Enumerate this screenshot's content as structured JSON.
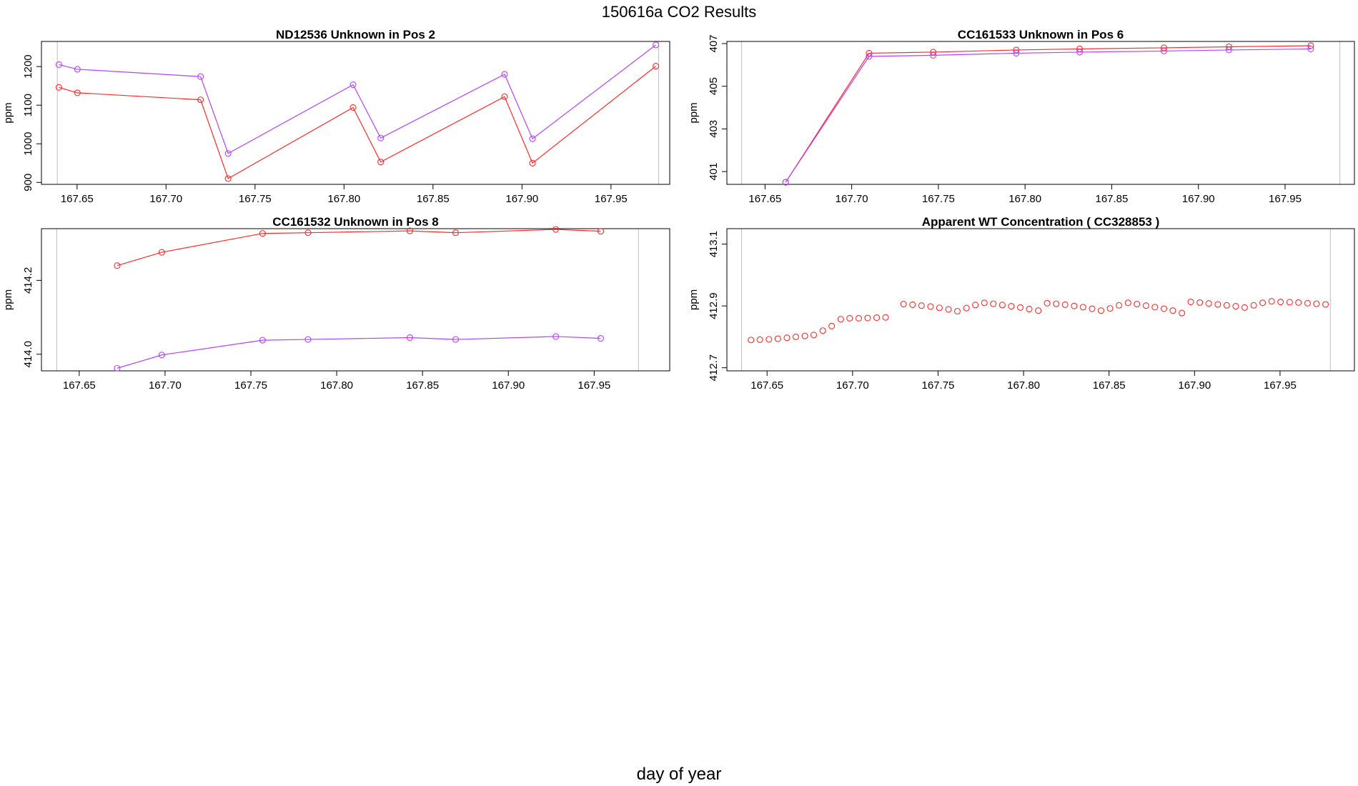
{
  "page": {
    "title": "150616a  CO2 Results",
    "x_axis_title": "day of year"
  },
  "colors": {
    "series_red": "#ff2a2a",
    "series_purple": "#b542ff",
    "axis": "#000000",
    "edge_line": "#bebebe"
  },
  "chart_data": [
    {
      "type": "line",
      "title": "ND12536    Unknown in Pos 2",
      "ylabel": "ppm",
      "xlim": [
        167.63,
        167.983
      ],
      "ylim": [
        895,
        1265
      ],
      "xticks": [
        "167.65",
        "167.70",
        "167.75",
        "167.80",
        "167.85",
        "167.90",
        "167.95"
      ],
      "yticks": [
        "900",
        "1000",
        "1100",
        "1200"
      ],
      "edge_lines": [
        167.6389,
        167.9768
      ],
      "series": [
        {
          "name": "purple",
          "color": "#b542ff",
          "x": [
            167.6398,
            167.6502,
            167.7194,
            167.7349,
            167.8051,
            167.8206,
            167.8902,
            167.9059,
            167.9752
          ],
          "y": [
            1205,
            1193,
            1174,
            975,
            1153,
            1015,
            1180,
            1013,
            1256
          ]
        },
        {
          "name": "red",
          "color": "#ff2a2a",
          "x": [
            167.6398,
            167.6502,
            167.7194,
            167.7349,
            167.8051,
            167.8206,
            167.8902,
            167.9059,
            167.9752
          ],
          "y": [
            1146,
            1132,
            1114,
            910,
            1094,
            953,
            1122,
            950,
            1201
          ]
        }
      ]
    },
    {
      "type": "line",
      "title": "CC161533    Unknown in Pos 6",
      "ylabel": "ppm",
      "xlim": [
        167.628,
        167.99
      ],
      "ylim": [
        400.4,
        407.1
      ],
      "xticks": [
        "167.65",
        "167.70",
        "167.75",
        "167.80",
        "167.85",
        "167.90",
        "167.95"
      ],
      "yticks": [
        "401",
        "403",
        "405",
        "407"
      ],
      "edge_lines": [
        167.6365,
        167.9816
      ],
      "series": [
        {
          "name": "red",
          "color": "#ff2a2a",
          "x": [
            167.6619,
            167.71,
            167.747,
            167.7949,
            167.8315,
            167.8801,
            167.9176,
            167.9648
          ],
          "y": [
            400.5,
            406.55,
            406.6,
            406.7,
            406.75,
            406.8,
            406.85,
            406.9
          ]
        },
        {
          "name": "purple",
          "color": "#b542ff",
          "x": [
            167.6619,
            167.71,
            167.747,
            167.7949,
            167.8315,
            167.8801,
            167.9176,
            167.9648
          ],
          "y": [
            400.5,
            406.4,
            406.45,
            406.55,
            406.6,
            406.65,
            406.7,
            406.75
          ]
        }
      ]
    },
    {
      "type": "line",
      "title": "CC161532    Unknown in Pos 8",
      "ylabel": "ppm",
      "xlim": [
        167.628,
        167.994
      ],
      "ylim": [
        413.955,
        414.34
      ],
      "xticks": [
        "167.65",
        "167.70",
        "167.75",
        "167.80",
        "167.85",
        "167.90",
        "167.95"
      ],
      "yticks": [
        "414.0",
        "414.2"
      ],
      "edge_lines": [
        167.6369,
        167.9758
      ],
      "series": [
        {
          "name": "red",
          "color": "#ff2a2a",
          "x": [
            167.6721,
            167.6981,
            167.7568,
            167.7833,
            167.8426,
            167.8693,
            167.9276,
            167.9538
          ],
          "y": [
            414.24,
            414.276,
            414.327,
            414.329,
            414.334,
            414.329,
            414.338,
            414.333
          ]
        },
        {
          "name": "purple",
          "color": "#b542ff",
          "x": [
            167.6721,
            167.6981,
            167.7568,
            167.7833,
            167.8426,
            167.8693,
            167.9276,
            167.9538
          ],
          "y": [
            413.962,
            413.998,
            414.038,
            414.04,
            414.045,
            414.04,
            414.048,
            414.043
          ]
        }
      ]
    },
    {
      "type": "scatter",
      "title": "Apparent WT Concentration ( CC328853 )",
      "ylabel": "ppm",
      "xlim": [
        167.6265,
        167.9935
      ],
      "ylim": [
        412.69,
        413.15
      ],
      "xticks": [
        "167.65",
        "167.70",
        "167.75",
        "167.80",
        "167.85",
        "167.90",
        "167.95"
      ],
      "yticks": [
        "412.7",
        "412.9",
        "413.1"
      ],
      "edge_lines": [
        167.6351,
        167.9794
      ],
      "series": [
        {
          "name": "red",
          "color": "#ff2a2a",
          "x": [
            167.6406,
            167.6458,
            167.6511,
            167.6563,
            167.6616,
            167.6668,
            167.6721,
            167.6773,
            167.6826,
            167.6878,
            167.6931,
            167.6983,
            167.7036,
            167.7088,
            167.7141,
            167.7193,
            167.7298,
            167.7351,
            167.7403,
            167.7456,
            167.7508,
            167.7561,
            167.7613,
            167.7666,
            167.7718,
            167.7771,
            167.7823,
            167.7876,
            167.7928,
            167.7981,
            167.8033,
            167.8086,
            167.8138,
            167.8191,
            167.8243,
            167.8296,
            167.8348,
            167.8401,
            167.8453,
            167.8506,
            167.8558,
            167.8611,
            167.8663,
            167.8716,
            167.8768,
            167.8821,
            167.8873,
            167.8926,
            167.8978,
            167.9031,
            167.9083,
            167.9136,
            167.9188,
            167.9241,
            167.9293,
            167.9346,
            167.9398,
            167.9451,
            167.9503,
            167.9556,
            167.9608,
            167.9661,
            167.9713,
            167.9766
          ],
          "y": [
            412.79,
            412.791,
            412.792,
            412.794,
            412.797,
            412.8,
            412.803,
            412.806,
            412.82,
            412.835,
            412.857,
            412.86,
            412.86,
            412.861,
            412.862,
            412.863,
            412.906,
            412.904,
            412.901,
            412.898,
            412.894,
            412.889,
            412.883,
            412.893,
            412.903,
            412.91,
            412.907,
            412.903,
            412.899,
            412.895,
            412.89,
            412.885,
            412.909,
            412.907,
            412.904,
            412.9,
            412.896,
            412.891,
            412.885,
            412.892,
            412.902,
            412.91,
            412.906,
            412.901,
            412.896,
            412.891,
            412.885,
            412.877,
            412.913,
            412.911,
            412.908,
            412.905,
            412.902,
            412.899,
            412.895,
            412.902,
            412.91,
            412.915,
            412.913,
            412.912,
            412.911,
            412.909,
            412.907,
            412.905
          ]
        }
      ]
    }
  ]
}
